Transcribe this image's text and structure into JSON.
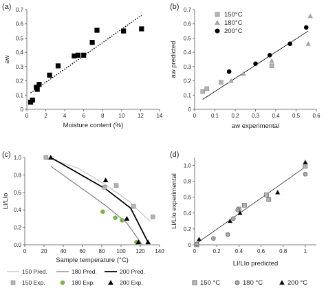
{
  "chart_data": [
    {
      "panel_label": "(a)",
      "type": "scatter",
      "xlabel": "Moisture content (%)",
      "ylabel": "aw",
      "xlim": [
        0,
        14
      ],
      "ylim": [
        0,
        0.7
      ],
      "xticks": [
        "0",
        "2",
        "4",
        "6",
        "8",
        "10",
        "12",
        "14"
      ],
      "yticks": [
        "0",
        "0.1",
        "0.2",
        "0.3",
        "0.4",
        "0.5",
        "0.6",
        "0.7"
      ],
      "series": [
        {
          "marker": "square",
          "color": "#000000",
          "x": [
            0.4,
            0.6,
            1.0,
            1.1,
            1.3,
            2.4,
            3.3,
            5.0,
            5.4,
            6.0,
            6.9,
            7.4,
            10.2,
            12.1
          ],
          "y": [
            0.05,
            0.065,
            0.155,
            0.14,
            0.175,
            0.24,
            0.305,
            0.375,
            0.38,
            0.38,
            0.47,
            0.555,
            0.55,
            0.565
          ]
        }
      ],
      "trendline": {
        "x": [
          0.4,
          12.1
        ],
        "y": [
          0.115,
          0.66
        ],
        "style": "dotted"
      }
    },
    {
      "panel_label": "(b)",
      "type": "scatter",
      "xlabel": "aw experimental",
      "ylabel": "aw predicted",
      "xlim": [
        0,
        0.6
      ],
      "ylim": [
        0,
        0.7
      ],
      "xticks": [
        "0",
        "0.1",
        "0.2",
        "0.3",
        "0.4",
        "0.5",
        "0.6"
      ],
      "yticks": [
        "0",
        "0.1",
        "0.2",
        "0.3",
        "0.4",
        "0.5",
        "0.6",
        "0.7"
      ],
      "legend": [
        "150°C",
        "180°C",
        "200°C"
      ],
      "series": [
        {
          "marker": "square",
          "color": "#b3b3b3",
          "x": [
            0.04,
            0.06,
            0.13,
            0.38
          ],
          "y": [
            0.125,
            0.145,
            0.19,
            0.305
          ]
        },
        {
          "marker": "triangle",
          "color": "#a6a6a6",
          "x": [
            0.18,
            0.24,
            0.38,
            0.56,
            0.57
          ],
          "y": [
            0.2,
            0.25,
            0.34,
            0.46,
            0.655
          ]
        },
        {
          "marker": "circle",
          "color": "#000000",
          "x": [
            0.17,
            0.3,
            0.37,
            0.47,
            0.55
          ],
          "y": [
            0.265,
            0.32,
            0.38,
            0.46,
            0.575
          ]
        }
      ],
      "fitline": {
        "x": [
          0.04,
          0.56
        ],
        "y": [
          0.07,
          0.55
        ]
      }
    },
    {
      "panel_label": "(c)",
      "type": "line",
      "xlabel": "Sample temperature (°C)",
      "ylabel": "LI/LIo",
      "xlim": [
        0,
        140
      ],
      "ylim": [
        0,
        1.0
      ],
      "xticks": [
        "0",
        "20",
        "40",
        "60",
        "80",
        "100",
        "120",
        "140"
      ],
      "yticks": [
        "0.0",
        "0.2",
        "0.4",
        "0.6",
        "0.8",
        "1.0"
      ],
      "series": [
        {
          "name": "150 Pred.",
          "kind": "line",
          "color": "#c4c4c4",
          "width": 1.2,
          "x": [
            22,
            55,
            85,
            108,
            130
          ],
          "y": [
            1.0,
            0.88,
            0.68,
            0.5,
            0.27
          ]
        },
        {
          "name": "180 Pred.",
          "kind": "line",
          "color": "#7f7f7f",
          "width": 1.2,
          "x": [
            27,
            84,
            106,
            122
          ],
          "y": [
            0.9,
            0.45,
            0.25,
            0.0
          ]
        },
        {
          "name": "200 Pred.",
          "kind": "line",
          "color": "#000000",
          "width": 1.8,
          "x": [
            27,
            84,
            110,
            128
          ],
          "y": [
            1.0,
            0.64,
            0.42,
            0.03
          ]
        },
        {
          "name": "150 Exp.",
          "kind": "marker",
          "marker": "square",
          "color": "#b3b3b3",
          "x": [
            22,
            83,
            95,
            113,
            133
          ],
          "y": [
            1.0,
            0.66,
            0.68,
            0.44,
            0.32
          ]
        },
        {
          "name": "180 Exp.",
          "kind": "marker",
          "marker": "circle",
          "color": "#7fb24d",
          "x": [
            81,
            94,
            101,
            116
          ],
          "y": [
            0.38,
            0.31,
            0.28,
            0.03
          ]
        },
        {
          "name": "200 Exp.",
          "kind": "marker",
          "marker": "triangle",
          "color": "#000000",
          "x": [
            27,
            84,
            106,
            118,
            128
          ],
          "y": [
            1.0,
            0.74,
            0.3,
            0.03,
            0.03
          ]
        }
      ]
    },
    {
      "panel_label": "(d)",
      "type": "scatter",
      "xlabel": "LI/LIo predicted",
      "ylabel": "LI/LIo experimental",
      "xlim": [
        0,
        1.1
      ],
      "ylim": [
        0,
        1.1
      ],
      "xticks": [
        "0",
        "0.2",
        "0.4",
        "0.6",
        "0.8",
        "1"
      ],
      "yticks": [
        "0",
        "0.2",
        "0.4",
        "0.6",
        "0.8",
        "1.0"
      ],
      "legend": [
        "150 °C",
        "180 °C",
        "200 °C"
      ],
      "series": [
        {
          "marker": "square",
          "color": "#b3b3b3",
          "x": [
            0.02,
            0.4,
            0.45,
            0.65,
            0.67,
            1.0
          ],
          "y": [
            0.0,
            0.45,
            0.5,
            0.63,
            0.57,
            0.99
          ]
        },
        {
          "marker": "circle",
          "color": "#a6a6a6",
          "x": [
            0.02,
            0.17,
            0.3,
            0.35,
            0.39,
            1.0
          ],
          "y": [
            0.01,
            0.08,
            0.13,
            0.33,
            0.44,
            0.89
          ]
        },
        {
          "marker": "triangle",
          "color": "#000000",
          "x": [
            0.04,
            0.32,
            0.41,
            0.75,
            1.0
          ],
          "y": [
            0.07,
            0.3,
            0.4,
            0.66,
            1.04
          ]
        }
      ],
      "fitline": {
        "x": [
          0.0,
          1.0
        ],
        "y": [
          0.0,
          0.98
        ]
      }
    }
  ]
}
